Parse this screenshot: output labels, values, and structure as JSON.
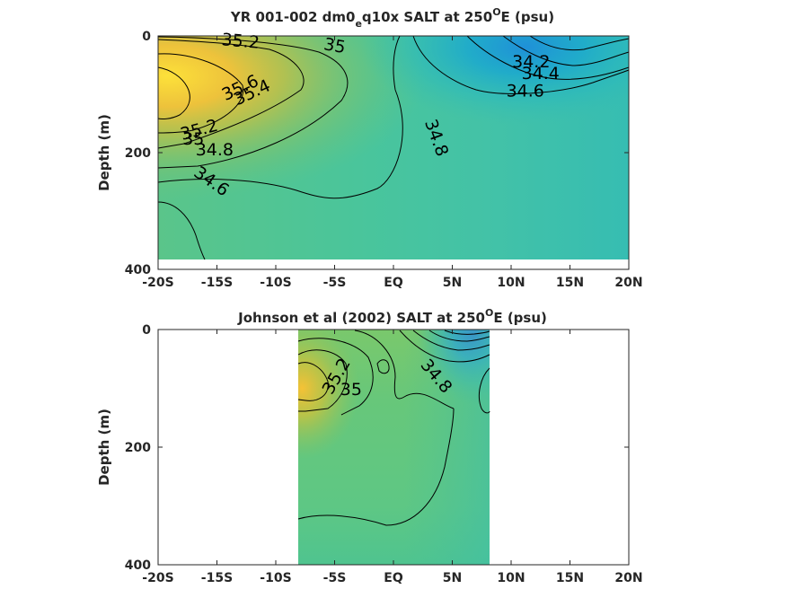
{
  "chart_data": [
    {
      "type": "heatmap",
      "title_parts": [
        "YR 001-002 dm0",
        "e",
        "q10x SALT at 250",
        "O",
        "E (psu)"
      ],
      "ylabel": "Depth (m)",
      "xlabel": "",
      "x_ticks": [
        "-20S",
        "-15S",
        "-10S",
        "-5S",
        "EQ",
        "5N",
        "10N",
        "15N",
        "20N"
      ],
      "x_tick_values": [
        -20,
        -15,
        -10,
        -5,
        0,
        5,
        10,
        15,
        20
      ],
      "y_ticks": [
        "0",
        "200",
        "400"
      ],
      "y_tick_values": [
        0,
        200,
        400
      ],
      "xlim": [
        -20,
        20
      ],
      "ylim": [
        400,
        0
      ],
      "data_extent": {
        "x": [
          -20,
          20
        ],
        "y": [
          0,
          385
        ]
      },
      "colormap": "parula",
      "color_range": [
        33.9,
        35.9
      ],
      "salinity_features": [
        {
          "name": "south-subtropical-max",
          "x": -19,
          "y": 70,
          "sx": 8,
          "sy": 80,
          "salt": 35.75
        },
        {
          "name": "north-fresh-pool",
          "x": 13,
          "y": 30,
          "sx": 6,
          "sy": 45,
          "salt": 34.1
        }
      ],
      "background_salt": 34.7,
      "contour_labels": [
        {
          "text": "35.2",
          "x": -13,
          "y": 10,
          "angle": 5
        },
        {
          "text": "35",
          "x": -5,
          "y": 18,
          "angle": 10
        },
        {
          "text": "35.6",
          "x": -13,
          "y": 90,
          "angle": -25
        },
        {
          "text": "35.4",
          "x": -12,
          "y": 98,
          "angle": -25
        },
        {
          "text": "35.2",
          "x": -16.5,
          "y": 162,
          "angle": -15
        },
        {
          "text": "35",
          "x": -17,
          "y": 178,
          "angle": 0
        },
        {
          "text": "34.8",
          "x": -15.2,
          "y": 196,
          "angle": 0
        },
        {
          "text": "34.6",
          "x": -15.5,
          "y": 250,
          "angle": 35
        },
        {
          "text": "34.8",
          "x": 3.6,
          "y": 175,
          "angle": 70
        },
        {
          "text": "34.2",
          "x": 11.7,
          "y": 45,
          "angle": 0
        },
        {
          "text": "34.4",
          "x": 12.5,
          "y": 65,
          "angle": 0
        },
        {
          "text": "34.6",
          "x": 11.2,
          "y": 95,
          "angle": 0
        }
      ]
    },
    {
      "type": "heatmap",
      "title_parts": [
        "Johnson et al (2002) SALT at 250",
        "O",
        "E (psu)"
      ],
      "ylabel": "Depth (m)",
      "xlabel": "",
      "x_ticks": [
        "-20S",
        "-15S",
        "-10S",
        "-5S",
        "EQ",
        "5N",
        "10N",
        "15N",
        "20N"
      ],
      "x_tick_values": [
        -20,
        -15,
        -10,
        -5,
        0,
        5,
        10,
        15,
        20
      ],
      "y_ticks": [
        "0",
        "200",
        "400"
      ],
      "y_tick_values": [
        0,
        200,
        400
      ],
      "xlim": [
        -20,
        20
      ],
      "ylim": [
        400,
        0
      ],
      "data_extent": {
        "x": [
          -8,
          8.3
        ],
        "y": [
          0,
          400
        ]
      },
      "colormap": "parula",
      "color_range": [
        33.9,
        35.9
      ],
      "salinity_features": [
        {
          "name": "south-salty-core",
          "x": -8,
          "y": 90,
          "sx": 3,
          "sy": 60,
          "salt": 35.5
        },
        {
          "name": "north-fresh-surface",
          "x": 7.5,
          "y": 0,
          "sx": 3,
          "sy": 50,
          "salt": 33.9
        }
      ],
      "background_salt": 34.85,
      "contour_labels": [
        {
          "text": "35.2",
          "x": -4.8,
          "y": 80,
          "angle": -60
        },
        {
          "text": "35",
          "x": -3.6,
          "y": 103,
          "angle": 0
        },
        {
          "text": "34.8",
          "x": 3.6,
          "y": 80,
          "angle": 50
        }
      ]
    }
  ]
}
